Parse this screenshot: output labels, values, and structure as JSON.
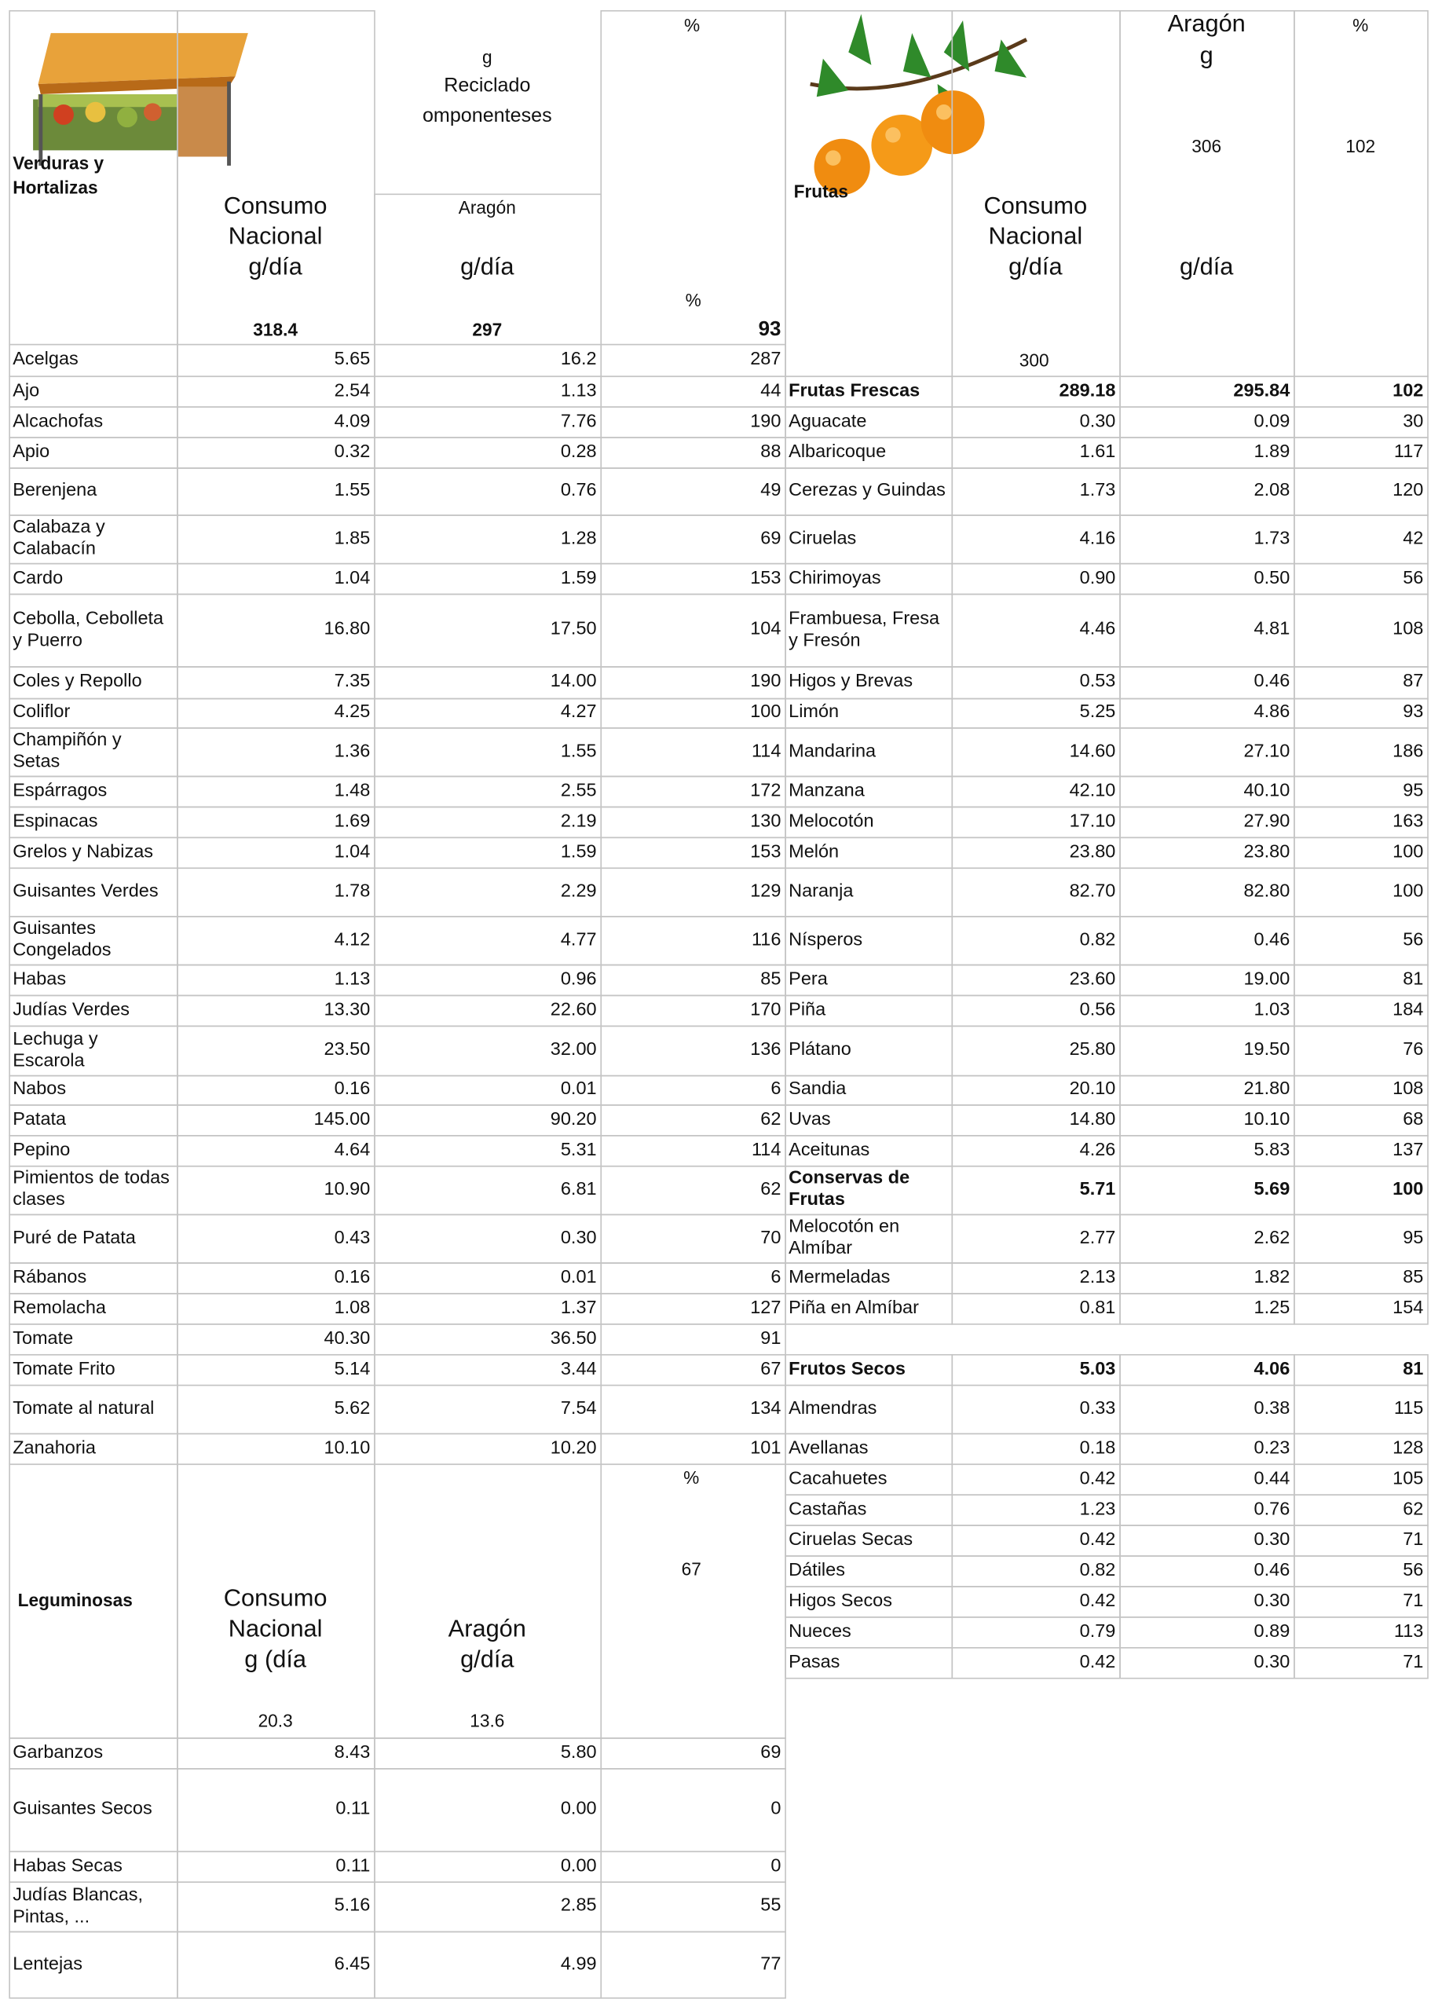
{
  "verduras": {
    "header": {
      "title": "Verduras y Hortalizas",
      "col1": [
        "Consumo",
        "Nacional",
        "g/día"
      ],
      "col1_total": "318.4",
      "col2_top": [
        "g",
        "Reciclado",
        "omponenteses"
      ],
      "col2": [
        "Aragón",
        "g/día"
      ],
      "col2_total": "297",
      "col3_top": "%",
      "col3_mid": "%",
      "col3_total": "93"
    },
    "rows": [
      [
        "Acelgas",
        "5.65",
        "16.2",
        "287"
      ],
      [
        "Ajo",
        "2.54",
        "1.13",
        "44"
      ],
      [
        "Alcachofas",
        "4.09",
        "7.76",
        "190"
      ],
      [
        "Apio",
        "0.32",
        "0.28",
        "88"
      ],
      [
        "Berenjena",
        "1.55",
        "0.76",
        "49"
      ],
      [
        "Calabaza y Calabacín",
        "1.85",
        "1.28",
        "69"
      ],
      [
        "Cardo",
        "1.04",
        "1.59",
        "153"
      ],
      [
        "Cebolla, Cebolleta y Puerro",
        "16.80",
        "17.50",
        "104"
      ],
      [
        "Coles y Repollo",
        "7.35",
        "14.00",
        "190"
      ],
      [
        "Coliflor",
        "4.25",
        "4.27",
        "100"
      ],
      [
        "Champiñón y Setas",
        "1.36",
        "1.55",
        "114"
      ],
      [
        "Espárragos",
        "1.48",
        "2.55",
        "172"
      ],
      [
        "Espinacas",
        "1.69",
        "2.19",
        "130"
      ],
      [
        "Grelos y Nabizas",
        "1.04",
        "1.59",
        "153"
      ],
      [
        "Guisantes Verdes",
        "1.78",
        "2.29",
        "129"
      ],
      [
        "Guisantes Congelados",
        "4.12",
        "4.77",
        "116"
      ],
      [
        "Habas",
        "1.13",
        "0.96",
        "85"
      ],
      [
        "Judías Verdes",
        "13.30",
        "22.60",
        "170"
      ],
      [
        "Lechuga y Escarola",
        "23.50",
        "32.00",
        "136"
      ],
      [
        "Nabos",
        "0.16",
        "0.01",
        "6"
      ],
      [
        "Patata",
        "145.00",
        "90.20",
        "62"
      ],
      [
        "Pepino",
        "4.64",
        "5.31",
        "114"
      ],
      [
        "Pimientos de todas clases",
        "10.90",
        "6.81",
        "62"
      ],
      [
        "Puré de Patata",
        "0.43",
        "0.30",
        "70"
      ],
      [
        "Rábanos",
        "0.16",
        "0.01",
        "6"
      ],
      [
        "Remolacha",
        "1.08",
        "1.37",
        "127"
      ],
      [
        "Tomate",
        "40.30",
        "36.50",
        "91"
      ],
      [
        "Tomate Frito",
        "5.14",
        "3.44",
        "67"
      ],
      [
        "Tomate al natural",
        "5.62",
        "7.54",
        "134"
      ],
      [
        "Zanahoria",
        "10.10",
        "10.20",
        "101"
      ]
    ]
  },
  "frutas": {
    "header": {
      "title": "Frutas",
      "col1": [
        "Consumo",
        "Nacional",
        "g/día"
      ],
      "col1_total": "300",
      "col2_top": [
        "Aragón",
        "g"
      ],
      "col2_total": "306",
      "col2": "g/día",
      "col3_top": "%",
      "col3_total": "102"
    },
    "rows": [
      [
        "Frutas Frescas",
        "289.18",
        "295.84",
        "102"
      ],
      [
        "Aguacate",
        "0.30",
        "0.09",
        "30"
      ],
      [
        "Albaricoque",
        "1.61",
        "1.89",
        "117"
      ],
      [
        "Cerezas y Guindas",
        "1.73",
        "2.08",
        "120"
      ],
      [
        "Ciruelas",
        "4.16",
        "1.73",
        "42"
      ],
      [
        "Chirimoyas",
        "0.90",
        "0.50",
        "56"
      ],
      [
        "Frambuesa, Fresa y Fresón",
        "4.46",
        "4.81",
        "108"
      ],
      [
        "Higos y Brevas",
        "0.53",
        "0.46",
        "87"
      ],
      [
        "Limón",
        "5.25",
        "4.86",
        "93"
      ],
      [
        "Mandarina",
        "14.60",
        "27.10",
        "186"
      ],
      [
        "Manzana",
        "42.10",
        "40.10",
        "95"
      ],
      [
        "Melocotón",
        "17.10",
        "27.90",
        "163"
      ],
      [
        "Melón",
        "23.80",
        "23.80",
        "100"
      ],
      [
        "Naranja",
        "82.70",
        "82.80",
        "100"
      ],
      [
        "Nísperos",
        "0.82",
        "0.46",
        "56"
      ],
      [
        "Pera",
        "23.60",
        "19.00",
        "81"
      ],
      [
        "Piña",
        "0.56",
        "1.03",
        "184"
      ],
      [
        "Plátano",
        "25.80",
        "19.50",
        "76"
      ],
      [
        "Sandia",
        "20.10",
        "21.80",
        "108"
      ],
      [
        "Uvas",
        "14.80",
        "10.10",
        "68"
      ],
      [
        "Aceitunas",
        "4.26",
        "5.83",
        "137"
      ],
      [
        "Conservas de Frutas",
        "5.71",
        "5.69",
        "100"
      ],
      [
        "Melocotón en Almíbar",
        "2.77",
        "2.62",
        "95"
      ],
      [
        "Mermeladas",
        "2.13",
        "1.82",
        "85"
      ],
      [
        "Piña en Almíbar",
        "0.81",
        "1.25",
        "154"
      ],
      [
        "Frutos Secos",
        "5.03",
        "4.06",
        "81"
      ],
      [
        "Almendras",
        "0.33",
        "0.38",
        "115"
      ],
      [
        "Avellanas",
        "0.18",
        "0.23",
        "128"
      ],
      [
        "Cacahuetes",
        "0.42",
        "0.44",
        "105"
      ],
      [
        "Castañas",
        "1.23",
        "0.76",
        "62"
      ],
      [
        "Ciruelas Secas",
        "0.42",
        "0.30",
        "71"
      ],
      [
        "Dátiles",
        "0.82",
        "0.46",
        "56"
      ],
      [
        "Higos Secos",
        "0.42",
        "0.30",
        "71"
      ],
      [
        "Nueces",
        "0.79",
        "0.89",
        "113"
      ],
      [
        "Pasas",
        "0.42",
        "0.30",
        "71"
      ]
    ]
  },
  "leguminosas": {
    "header": {
      "title": "Leguminosas",
      "col1": [
        "Consumo",
        "Nacional",
        "g (día"
      ],
      "col1_total": "20.3",
      "col2": [
        "Aragón",
        "g/día"
      ],
      "col2_total": "13.6",
      "col3_top": "%",
      "col3_total": "67"
    },
    "rows": [
      [
        "Garbanzos",
        "8.43",
        "5.80",
        "69"
      ],
      [
        "Guisantes Secos",
        "0.11",
        "0.00",
        "0"
      ],
      [
        "Habas Secas",
        "0.11",
        "0.00",
        "0"
      ],
      [
        "Judías Blancas, Pintas, ...",
        "5.16",
        "2.85",
        "55"
      ],
      [
        "Lentejas",
        "6.45",
        "4.99",
        "77"
      ]
    ]
  }
}
